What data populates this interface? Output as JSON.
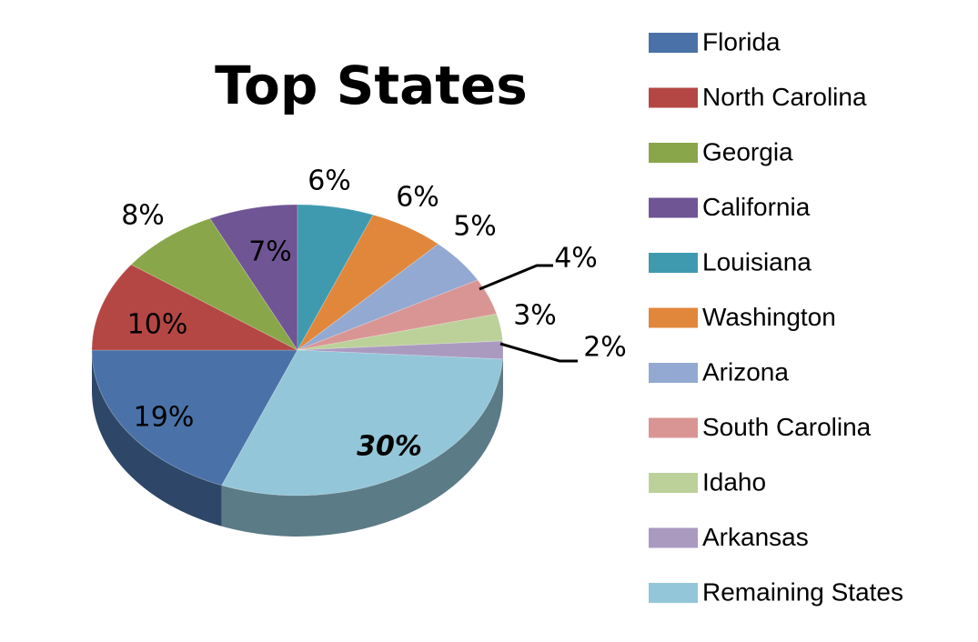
{
  "chart_data": {
    "type": "pie",
    "title": "Top States",
    "categories": [
      "Florida",
      "North Carolina",
      "Georgia",
      "California",
      "Louisiana",
      "Washington",
      "Arizona",
      "South Carolina",
      "Idaho",
      "Arkansas",
      "Remaining States"
    ],
    "values": [
      19,
      10,
      8,
      7,
      6,
      6,
      5,
      4,
      3,
      2,
      30
    ],
    "value_labels": [
      "19%",
      "10%",
      "8%",
      "7%",
      "6%",
      "6%",
      "5%",
      "4%",
      "3%",
      "2%",
      "30%"
    ],
    "colors": [
      "#4a72a8",
      "#b44744",
      "#8aa64a",
      "#6f5594",
      "#3f9ab0",
      "#e0873c",
      "#93a9d2",
      "#d99594",
      "#bcd19a",
      "#aa9ac0",
      "#93c6d8"
    ],
    "legend": "right"
  }
}
